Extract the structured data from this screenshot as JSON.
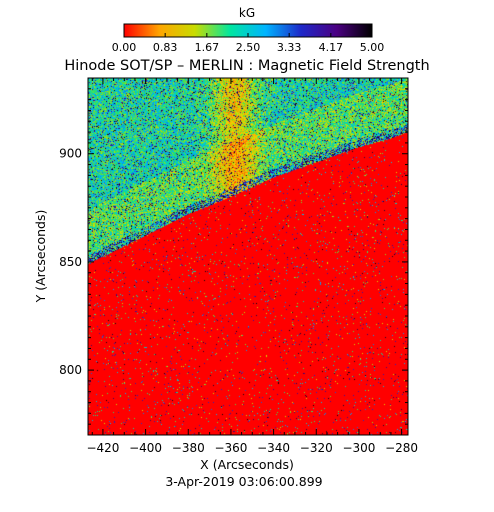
{
  "chart_data": {
    "type": "heatmap",
    "title": "Hinode SOT/SP – MERLIN : Magnetic Field Strength",
    "xlabel": "X (Arcseconds)",
    "ylabel": "Y (Arcseconds)",
    "xlim": [
      -427,
      -277
    ],
    "ylim": [
      770,
      935
    ],
    "x_ticks": [
      -420,
      -400,
      -380,
      -360,
      -340,
      -320,
      -300,
      -280
    ],
    "y_ticks": [
      800,
      850,
      900
    ],
    "x_tick_labels": [
      "−420",
      "−400",
      "−380",
      "−360",
      "−340",
      "−320",
      "−300",
      "−280"
    ],
    "y_tick_labels": [
      "800",
      "850",
      "900"
    ],
    "date_label": "3-Apr-2019 03:06:00.899",
    "colorbar": {
      "unit": "kG",
      "range": [
        0.0,
        5.0
      ],
      "tick_values": [
        0.0,
        0.83,
        1.67,
        2.5,
        3.33,
        4.17,
        5.0
      ],
      "tick_labels": [
        "0.00",
        "0.83",
        "1.67",
        "2.50",
        "3.33",
        "4.17",
        "5.00"
      ],
      "colors": [
        "#ff0000",
        "#ffa500",
        "#c8dc00",
        "#00e6a0",
        "#00b4ff",
        "#1e28c8",
        "#4b0082",
        "#000000"
      ]
    },
    "limb": {
      "points": [
        [
          -427,
          849
        ],
        [
          -400,
          862
        ],
        [
          -380,
          872
        ],
        [
          -360,
          880
        ],
        [
          -340,
          889
        ],
        [
          -320,
          896
        ],
        [
          -300,
          903
        ],
        [
          -285,
          907
        ],
        [
          -277,
          910
        ]
      ]
    },
    "background_value_kG": 0.0,
    "off_limb_typical_kG": [
      0.8,
      2.6
    ]
  }
}
